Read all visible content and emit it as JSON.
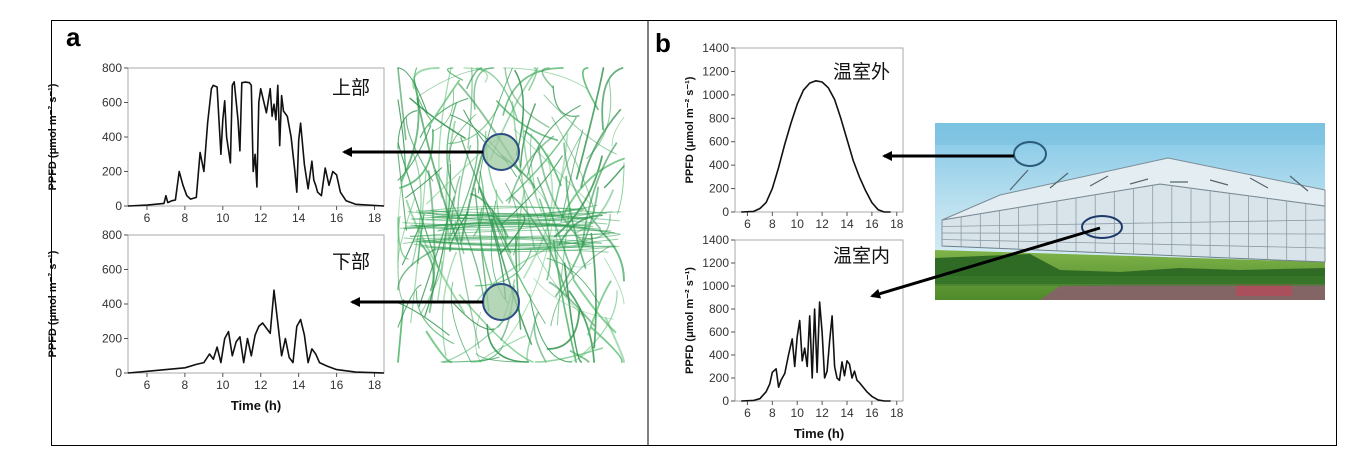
{
  "panels": {
    "a": {
      "letter": "a",
      "top_label": "上部",
      "bottom_label": "下部"
    },
    "b": {
      "letter": "b",
      "top_label": "温室外",
      "bottom_label": "温室内"
    }
  },
  "colors": {
    "line": "#111111",
    "plant": "#2e9e4f",
    "circle_fill": "#9cc9a0",
    "circle_stroke": "#2c4c84",
    "arrow": "#000000"
  },
  "chart_data": [
    {
      "id": "a-top",
      "type": "line",
      "title": "上部",
      "xlabel": "",
      "ylabel": "PPFD (μmol m⁻² s⁻¹)",
      "xlim": [
        5,
        18.5
      ],
      "ylim": [
        0,
        800
      ],
      "xticks": [
        6,
        8,
        10,
        12,
        14,
        16,
        18
      ],
      "yticks": [
        0,
        200,
        400,
        600,
        800
      ],
      "x": [
        5.0,
        6.0,
        6.9,
        7.0,
        7.1,
        7.3,
        7.5,
        7.7,
        7.9,
        8.1,
        8.3,
        8.6,
        8.8,
        9.0,
        9.2,
        9.4,
        9.5,
        9.7,
        9.9,
        10.0,
        10.1,
        10.2,
        10.4,
        10.5,
        10.6,
        10.8,
        10.9,
        11.0,
        11.2,
        11.4,
        11.5,
        11.6,
        11.7,
        11.8,
        11.9,
        12.0,
        12.3,
        12.5,
        12.6,
        12.7,
        12.8,
        12.9,
        13.0,
        13.1,
        13.2,
        13.4,
        13.6,
        13.8,
        13.9,
        14.0,
        14.1,
        14.3,
        14.5,
        14.6,
        14.7,
        14.8,
        14.9,
        15.0,
        15.2,
        15.4,
        15.6,
        15.8,
        16.0,
        16.2,
        16.5,
        17.0,
        18.5
      ],
      "values": [
        0,
        5,
        15,
        60,
        20,
        30,
        35,
        200,
        120,
        60,
        40,
        50,
        310,
        200,
        480,
        680,
        700,
        690,
        300,
        500,
        610,
        400,
        250,
        700,
        720,
        500,
        320,
        715,
        718,
        715,
        700,
        200,
        300,
        110,
        600,
        680,
        540,
        680,
        520,
        590,
        500,
        700,
        350,
        640,
        550,
        520,
        400,
        200,
        80,
        380,
        480,
        240,
        100,
        180,
        260,
        150,
        120,
        80,
        60,
        220,
        120,
        200,
        180,
        80,
        30,
        10,
        0
      ]
    },
    {
      "id": "a-bottom",
      "type": "line",
      "title": "下部",
      "xlabel": "Time (h)",
      "ylabel": "PPFD (μmol m⁻² s⁻¹)",
      "xlim": [
        5,
        18.5
      ],
      "ylim": [
        0,
        800
      ],
      "xticks": [
        6,
        8,
        10,
        12,
        14,
        16,
        18
      ],
      "yticks": [
        0,
        200,
        400,
        600,
        800
      ],
      "x": [
        5.0,
        6.0,
        7.0,
        8.0,
        8.6,
        9.0,
        9.3,
        9.5,
        9.7,
        9.9,
        10.1,
        10.3,
        10.5,
        10.7,
        10.9,
        11.1,
        11.3,
        11.5,
        11.7,
        11.9,
        12.1,
        12.3,
        12.5,
        12.7,
        12.9,
        13.1,
        13.3,
        13.5,
        13.7,
        13.9,
        14.1,
        14.3,
        14.5,
        14.7,
        14.9,
        15.1,
        15.5,
        16.0,
        17.0,
        18.5
      ],
      "values": [
        0,
        10,
        20,
        30,
        50,
        60,
        110,
        80,
        150,
        60,
        200,
        240,
        100,
        180,
        210,
        60,
        200,
        100,
        220,
        270,
        290,
        260,
        230,
        480,
        290,
        100,
        200,
        90,
        60,
        270,
        310,
        220,
        60,
        140,
        110,
        60,
        40,
        20,
        5,
        0
      ]
    },
    {
      "id": "b-top",
      "type": "line",
      "title": "温室外",
      "xlabel": "",
      "ylabel": "PPFD (μmol m⁻² s⁻¹)",
      "xlim": [
        5,
        18.5
      ],
      "ylim": [
        0,
        1400
      ],
      "xticks": [
        6,
        8,
        10,
        12,
        14,
        16,
        18
      ],
      "yticks": [
        0,
        200,
        400,
        600,
        800,
        1000,
        1200,
        1400
      ],
      "x": [
        5.5,
        6.5,
        7.0,
        7.5,
        8.0,
        8.5,
        9.0,
        9.5,
        10.0,
        10.5,
        11.0,
        11.5,
        12.0,
        12.5,
        13.0,
        13.5,
        14.0,
        14.5,
        15.0,
        15.5,
        16.0,
        16.5,
        17.0,
        17.5
      ],
      "values": [
        0,
        5,
        30,
        80,
        200,
        380,
        580,
        760,
        920,
        1040,
        1100,
        1120,
        1110,
        1060,
        960,
        800,
        620,
        440,
        300,
        180,
        80,
        20,
        0,
        0
      ]
    },
    {
      "id": "b-bottom",
      "type": "line",
      "title": "温室内",
      "xlabel": "Time (h)",
      "ylabel": "PPFD (μmol m⁻² s⁻¹)",
      "xlim": [
        5,
        18.5
      ],
      "ylim": [
        0,
        1400
      ],
      "xticks": [
        6,
        8,
        10,
        12,
        14,
        16,
        18
      ],
      "yticks": [
        0,
        200,
        400,
        600,
        800,
        1000,
        1200,
        1400
      ],
      "x": [
        5.5,
        6.5,
        7.0,
        7.5,
        7.8,
        8.0,
        8.3,
        8.5,
        8.7,
        9.0,
        9.3,
        9.6,
        9.8,
        10.0,
        10.2,
        10.4,
        10.6,
        10.8,
        11.0,
        11.2,
        11.4,
        11.6,
        11.8,
        12.0,
        12.2,
        12.4,
        12.6,
        12.8,
        13.0,
        13.2,
        13.4,
        13.6,
        13.8,
        14.0,
        14.2,
        14.4,
        14.6,
        14.8,
        15.0,
        15.3,
        15.6,
        16.0,
        16.5,
        17.0,
        17.5
      ],
      "values": [
        0,
        5,
        20,
        80,
        150,
        250,
        280,
        120,
        180,
        240,
        400,
        540,
        300,
        560,
        700,
        350,
        460,
        300,
        740,
        200,
        800,
        250,
        860,
        600,
        200,
        260,
        520,
        740,
        300,
        200,
        180,
        340,
        220,
        350,
        320,
        200,
        260,
        180,
        160,
        120,
        80,
        40,
        10,
        0,
        0
      ]
    }
  ]
}
